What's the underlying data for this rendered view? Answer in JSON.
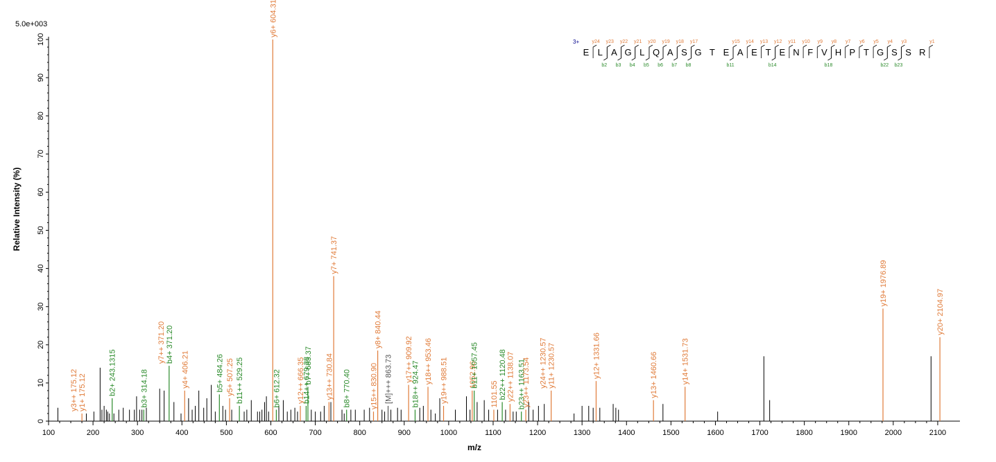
{
  "chart_data": {
    "type": "bar",
    "title": "",
    "intensity_scale": "5.0e+003",
    "xlabel": "m/z",
    "ylabel": "Relative   Intensity (%)",
    "xlim": [
      100,
      2150
    ],
    "ylim": [
      0,
      100
    ],
    "xticks": [
      100,
      200,
      300,
      400,
      500,
      600,
      700,
      800,
      900,
      1000,
      1100,
      1200,
      1300,
      1400,
      1500,
      1600,
      1700,
      1800,
      1900,
      2000,
      2100
    ],
    "yticks": [
      0,
      10,
      20,
      30,
      40,
      50,
      60,
      70,
      80,
      90,
      100
    ],
    "colors": {
      "y_ion": "#e07b39",
      "b_ion": "#2a8a2a",
      "other": "#000000",
      "precursor": "#555555",
      "charge": "#00008b"
    },
    "labeled_peaks": [
      {
        "mz": 175.12,
        "intensity": 2.0,
        "series": "y",
        "label": "y1+ 175.12"
      },
      {
        "mz": 175.12,
        "intensity": 2.0,
        "series": "y",
        "label": "y3++ 175.12",
        "stack": 1
      },
      {
        "mz": 243.13,
        "intensity": 6.0,
        "series": "b",
        "label": "b2+ 243.1315"
      },
      {
        "mz": 314.18,
        "intensity": 3.0,
        "series": "b",
        "label": "b3+ 314.18"
      },
      {
        "mz": 371.2,
        "intensity": 14.5,
        "series": "b",
        "label": "b4+ 371.20"
      },
      {
        "mz": 371.2,
        "intensity": 14.5,
        "series": "y",
        "label": "y7++ 371.20",
        "stack": 1
      },
      {
        "mz": 406.21,
        "intensity": 8.0,
        "series": "y",
        "label": "y4+ 406.21"
      },
      {
        "mz": 484.26,
        "intensity": 7.0,
        "series": "b",
        "label": "b5+ 484.26"
      },
      {
        "mz": 507.25,
        "intensity": 6.0,
        "series": "y",
        "label": "y5+ 507.25"
      },
      {
        "mz": 529.25,
        "intensity": 4.0,
        "series": "b",
        "label": "b11++ 529.25"
      },
      {
        "mz": 604.31,
        "intensity": 100.0,
        "series": "y",
        "label": "y6+ 604.31"
      },
      {
        "mz": 612.32,
        "intensity": 3.0,
        "series": "b",
        "label": "b6+ 612.32"
      },
      {
        "mz": 666.35,
        "intensity": 4.0,
        "series": "y",
        "label": "y12++ 666.35"
      },
      {
        "mz": 679.38,
        "intensity": 4.0,
        "series": "b",
        "label": "b14++ 679.38"
      },
      {
        "mz": 683.37,
        "intensity": 9.0,
        "series": "b",
        "label": "b7+ 683.37"
      },
      {
        "mz": 730.84,
        "intensity": 5.0,
        "series": "y",
        "label": "y13++ 730.84"
      },
      {
        "mz": 741.37,
        "intensity": 38.0,
        "series": "y",
        "label": "y7+ 741.37"
      },
      {
        "mz": 770.4,
        "intensity": 3.0,
        "series": "b",
        "label": "b8+ 770.40"
      },
      {
        "mz": 830.9,
        "intensity": 2.5,
        "series": "y",
        "label": "y15++ 830.90"
      },
      {
        "mz": 840.44,
        "intensity": 18.5,
        "series": "y",
        "label": "y8+ 840.44"
      },
      {
        "mz": 863.73,
        "intensity": 4.0,
        "series": "p",
        "label": "[M]+++ 863.73"
      },
      {
        "mz": 909.92,
        "intensity": 9.5,
        "series": "y",
        "label": "y17++ 909.92"
      },
      {
        "mz": 924.47,
        "intensity": 3.0,
        "series": "b",
        "label": "b18++ 924.47"
      },
      {
        "mz": 953.46,
        "intensity": 9.0,
        "series": "y",
        "label": "y18++ 953.46"
      },
      {
        "mz": 988.51,
        "intensity": 4.0,
        "series": "y",
        "label": "y19++ 988.51"
      },
      {
        "mz": 1052.96,
        "intensity": 8.0,
        "series": "y",
        "label": "1052.96"
      },
      {
        "mz": 1057.45,
        "intensity": 8.0,
        "series": "b",
        "label": "b11+ 1057.45"
      },
      {
        "mz": 1101.55,
        "intensity": 3.0,
        "series": "y",
        "label": "1101.55"
      },
      {
        "mz": 1120.48,
        "intensity": 5.0,
        "series": "b",
        "label": "b22++ 1120.48"
      },
      {
        "mz": 1138.07,
        "intensity": 4.5,
        "series": "y",
        "label": "y22++ 1138.07"
      },
      {
        "mz": 1163.51,
        "intensity": 2.5,
        "series": "b",
        "label": "b23++ 1163.51"
      },
      {
        "mz": 1173.54,
        "intensity": 3.0,
        "series": "y",
        "label": "y23++ 1173.54"
      },
      {
        "mz": 1230.57,
        "intensity": 8.0,
        "series": "y",
        "label": "y11+ 1230.57"
      },
      {
        "mz": 1230.57,
        "intensity": 8.0,
        "series": "y",
        "label": "y24++ 1230.57",
        "stack": 1
      },
      {
        "mz": 1331.66,
        "intensity": 10.5,
        "series": "y",
        "label": "y12+ 1331.66"
      },
      {
        "mz": 1460.66,
        "intensity": 5.5,
        "series": "y",
        "label": "y13+ 1460.66"
      },
      {
        "mz": 1531.73,
        "intensity": 9.0,
        "series": "y",
        "label": "y14+ 1531.73"
      },
      {
        "mz": 1976.89,
        "intensity": 29.5,
        "series": "y",
        "label": "y19+ 1976.89"
      },
      {
        "mz": 2104.97,
        "intensity": 22.0,
        "series": "y",
        "label": "y20+ 2104.97"
      }
    ],
    "unlabeled_peaks": [
      [
        121,
        3.5
      ],
      [
        185,
        2.0
      ],
      [
        202,
        2.5
      ],
      [
        216,
        14.0
      ],
      [
        220,
        3.0
      ],
      [
        225,
        4.0
      ],
      [
        230,
        3.0
      ],
      [
        233,
        2.5
      ],
      [
        237,
        2.0
      ],
      [
        247,
        2.0
      ],
      [
        258,
        3.0
      ],
      [
        268,
        3.5
      ],
      [
        282,
        3.0
      ],
      [
        293,
        3.0
      ],
      [
        298,
        6.5
      ],
      [
        305,
        3.0
      ],
      [
        310,
        3.0
      ],
      [
        320,
        3.5
      ],
      [
        350,
        8.5
      ],
      [
        360,
        8.0
      ],
      [
        382,
        5.0
      ],
      [
        398,
        2.0
      ],
      [
        415,
        6.0
      ],
      [
        423,
        3.0
      ],
      [
        430,
        4.0
      ],
      [
        438,
        8.0
      ],
      [
        449,
        3.5
      ],
      [
        456,
        6.0
      ],
      [
        466,
        9.5
      ],
      [
        475,
        2.5
      ],
      [
        492,
        4.0
      ],
      [
        498,
        3.0
      ],
      [
        512,
        3.0
      ],
      [
        540,
        2.5
      ],
      [
        546,
        3.0
      ],
      [
        556,
        5.5
      ],
      [
        570,
        2.5
      ],
      [
        575,
        2.5
      ],
      [
        580,
        3.0
      ],
      [
        586,
        5.0
      ],
      [
        590,
        6.5
      ],
      [
        595,
        2.5
      ],
      [
        618,
        4.0
      ],
      [
        628,
        5.5
      ],
      [
        637,
        2.5
      ],
      [
        645,
        3.0
      ],
      [
        654,
        3.5
      ],
      [
        660,
        2.5
      ],
      [
        691,
        3.0
      ],
      [
        700,
        2.5
      ],
      [
        712,
        2.5
      ],
      [
        720,
        4.0
      ],
      [
        735,
        5.0
      ],
      [
        760,
        3.0
      ],
      [
        765,
        2.0
      ],
      [
        780,
        3.0
      ],
      [
        790,
        3.0
      ],
      [
        810,
        3.0
      ],
      [
        822,
        3.5
      ],
      [
        850,
        3.0
      ],
      [
        856,
        2.5
      ],
      [
        870,
        3.0
      ],
      [
        885,
        3.5
      ],
      [
        893,
        3.0
      ],
      [
        935,
        3.5
      ],
      [
        943,
        4.0
      ],
      [
        960,
        3.0
      ],
      [
        970,
        2.0
      ],
      [
        980,
        6.0
      ],
      [
        1015,
        3.0
      ],
      [
        1040,
        6.5
      ],
      [
        1048,
        3.0
      ],
      [
        1064,
        5.0
      ],
      [
        1080,
        5.5
      ],
      [
        1090,
        3.0
      ],
      [
        1110,
        3.0
      ],
      [
        1128,
        3.0
      ],
      [
        1145,
        2.5
      ],
      [
        1152,
        2.5
      ],
      [
        1180,
        5.0
      ],
      [
        1190,
        3.0
      ],
      [
        1202,
        4.0
      ],
      [
        1215,
        4.5
      ],
      [
        1282,
        2.0
      ],
      [
        1300,
        4.0
      ],
      [
        1315,
        4.0
      ],
      [
        1325,
        3.5
      ],
      [
        1340,
        3.5
      ],
      [
        1370,
        4.5
      ],
      [
        1376,
        3.5
      ],
      [
        1382,
        3.0
      ],
      [
        1482,
        4.5
      ],
      [
        1605,
        2.5
      ],
      [
        1709,
        17.0
      ],
      [
        1722,
        5.5
      ],
      [
        2085,
        17.0
      ]
    ],
    "sequence_annotation": {
      "charge": "3+",
      "residues": [
        "E",
        "L",
        "A",
        "G",
        "L",
        "Q",
        "A",
        "S",
        "G",
        "T",
        "E",
        "A",
        "E",
        "T",
        "E",
        "N",
        "F",
        "V",
        "H",
        "P",
        "T",
        "G",
        "S",
        "S",
        "R"
      ],
      "y_ions": [
        {
          "after": 1,
          "label": "y24"
        },
        {
          "after": 2,
          "label": "y23"
        },
        {
          "after": 3,
          "label": "y22"
        },
        {
          "after": 4,
          "label": "y21"
        },
        {
          "after": 5,
          "label": "y20"
        },
        {
          "after": 6,
          "label": "y19"
        },
        {
          "after": 7,
          "label": "y18"
        },
        {
          "after": 8,
          "label": "y17"
        },
        {
          "after": 11,
          "label": "y15"
        },
        {
          "after": 12,
          "label": "y14"
        },
        {
          "after": 13,
          "label": "y13"
        },
        {
          "after": 14,
          "label": "y12"
        },
        {
          "after": 15,
          "label": "y11"
        },
        {
          "after": 16,
          "label": "y10"
        },
        {
          "after": 17,
          "label": "y9"
        },
        {
          "after": 18,
          "label": "y8"
        },
        {
          "after": 19,
          "label": "y7"
        },
        {
          "after": 20,
          "label": "y6"
        },
        {
          "after": 21,
          "label": "y5"
        },
        {
          "after": 22,
          "label": "y4"
        },
        {
          "after": 23,
          "label": "y3"
        },
        {
          "after": 25,
          "label": "y1"
        }
      ],
      "b_ions": [
        {
          "after": 2,
          "label": "b2"
        },
        {
          "after": 3,
          "label": "b3"
        },
        {
          "after": 4,
          "label": "b4"
        },
        {
          "after": 5,
          "label": "b5"
        },
        {
          "after": 6,
          "label": "b6"
        },
        {
          "after": 7,
          "label": "b7"
        },
        {
          "after": 8,
          "label": "b8"
        },
        {
          "after": 11,
          "label": "b11"
        },
        {
          "after": 14,
          "label": "b14"
        },
        {
          "after": 18,
          "label": "b18"
        },
        {
          "after": 22,
          "label": "b22"
        },
        {
          "after": 23,
          "label": "b23"
        }
      ]
    }
  }
}
